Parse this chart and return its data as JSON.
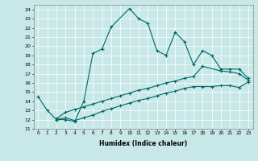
{
  "xlabel": "Humidex (Indice chaleur)",
  "bg_color": "#c8e8e8",
  "line_color": "#006666",
  "xlim": [
    -0.5,
    23.5
  ],
  "ylim": [
    11,
    24.5
  ],
  "yticks": [
    11,
    12,
    13,
    14,
    15,
    16,
    17,
    18,
    19,
    20,
    21,
    22,
    23,
    24
  ],
  "xticks": [
    0,
    1,
    2,
    3,
    4,
    5,
    6,
    7,
    8,
    9,
    10,
    11,
    12,
    13,
    14,
    15,
    16,
    17,
    18,
    19,
    20,
    21,
    22,
    23
  ],
  "line1_x": [
    0,
    1,
    2,
    3,
    4,
    5,
    6,
    7,
    8,
    10,
    11,
    12,
    13,
    14,
    15,
    16,
    17,
    18,
    19,
    20,
    21,
    22,
    23
  ],
  "line1_y": [
    14.5,
    13,
    12,
    12,
    11.8,
    14,
    19.2,
    19.7,
    22.1,
    24.1,
    23.0,
    22.5,
    19.5,
    19.0,
    21.5,
    20.5,
    18.0,
    19.5,
    19.0,
    17.5,
    17.5,
    17.5,
    16.5
  ],
  "line2_x": [
    2,
    3,
    4,
    5,
    6,
    7,
    8,
    9,
    10,
    11,
    12,
    13,
    14,
    15,
    16,
    17,
    18,
    20,
    21,
    22,
    23
  ],
  "line2_y": [
    12.1,
    12.8,
    13.1,
    13.4,
    13.7,
    14.0,
    14.3,
    14.6,
    14.9,
    15.2,
    15.4,
    15.7,
    16.0,
    16.2,
    16.5,
    16.7,
    17.8,
    17.3,
    17.2,
    17.0,
    16.3
  ],
  "line3_x": [
    2,
    3,
    4,
    5,
    6,
    7,
    8,
    9,
    10,
    11,
    12,
    13,
    14,
    15,
    16,
    17,
    18,
    19,
    20,
    21,
    22,
    23
  ],
  "line3_y": [
    12.0,
    12.2,
    11.9,
    12.2,
    12.5,
    12.9,
    13.2,
    13.5,
    13.8,
    14.1,
    14.3,
    14.6,
    14.9,
    15.1,
    15.4,
    15.6,
    15.6,
    15.6,
    15.7,
    15.7,
    15.5,
    16.1
  ]
}
